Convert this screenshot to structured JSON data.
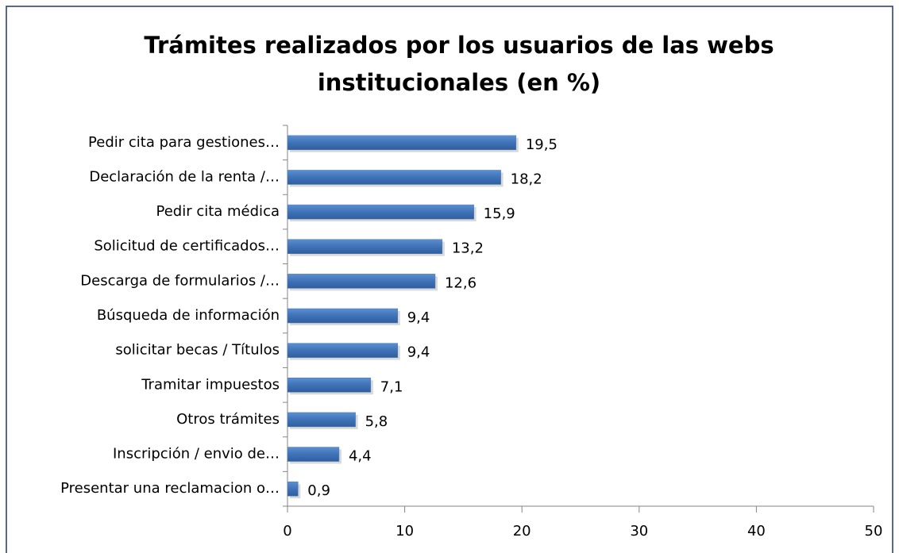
{
  "chart_data": {
    "type": "bar",
    "orientation": "horizontal",
    "title": "Trámites realizados por los usuarios de las webs institucionales (en %)",
    "categories": [
      "Pedir cita para gestiones…",
      "Declaración de la renta /…",
      "Pedir cita médica",
      "Solicitud de certificados…",
      "Descarga de formularios /…",
      "Búsqueda de información",
      "solicitar becas / Títulos",
      "Tramitar impuestos",
      "Otros trámites",
      "Inscripción / envio de…",
      "Presentar una reclamacion o…"
    ],
    "values": [
      19.5,
      18.2,
      15.9,
      13.2,
      12.6,
      9.4,
      9.4,
      7.1,
      5.8,
      4.4,
      0.9
    ],
    "value_labels": [
      "19,5",
      "18,2",
      "15,9",
      "13,2",
      "12,6",
      "9,4",
      "9,4",
      "7,1",
      "5,8",
      "4,4",
      "0,9"
    ],
    "color": "#4a7ebb",
    "xlim": [
      0,
      50
    ],
    "xticks": [
      0,
      10,
      20,
      30,
      40,
      50
    ],
    "grid": false
  }
}
